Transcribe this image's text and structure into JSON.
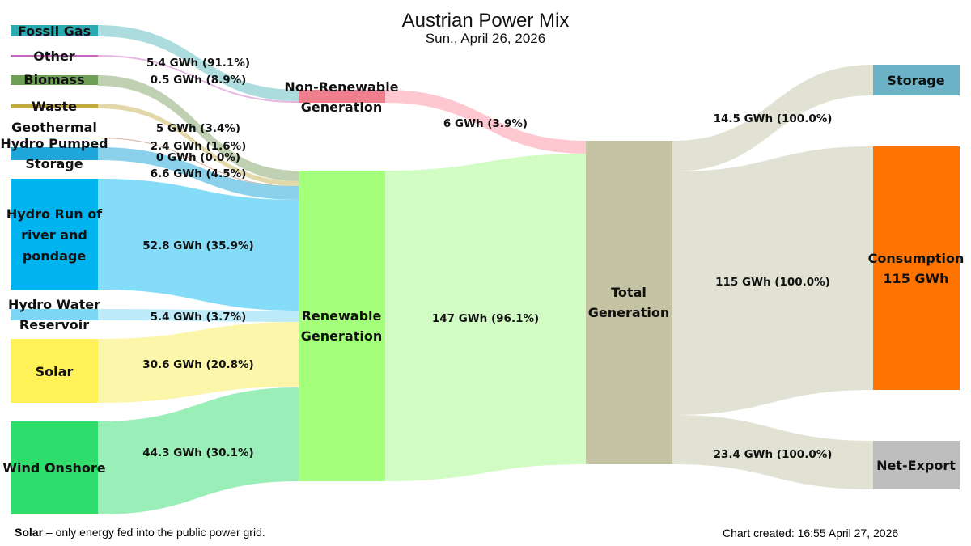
{
  "title": "Austrian Power Mix",
  "subtitle": "Sun., April 26, 2026",
  "footnote": {
    "bold": "Solar",
    "text": "–  only energy fed into the public power grid."
  },
  "created": "Chart created: 16:55 April 27, 2026",
  "nodes": {
    "fossil_gas": {
      "label": "Fossil Gas",
      "color": "#2BAAB2"
    },
    "other": {
      "label": "Other",
      "color": "#C766C0"
    },
    "biomass": {
      "label": "Biomass",
      "color": "#6E9F56"
    },
    "waste": {
      "label": "Waste",
      "color": "#BFAA3E"
    },
    "geothermal": {
      "label": "Geothermal",
      "color": "#A35A2A"
    },
    "hydro_pumped": {
      "label_lines": [
        "Hydro Pumped",
        "Storage"
      ],
      "color": "#1FA6DA"
    },
    "hydro_run": {
      "label_lines": [
        "Hydro Run of",
        "river and",
        "pondage"
      ],
      "color": "#00B4F0"
    },
    "hydro_reservoir": {
      "label_lines": [
        "Hydro Water",
        "Reservoir"
      ],
      "color": "#7CD7F5"
    },
    "solar": {
      "label": "Solar",
      "color": "#FFF157"
    },
    "wind": {
      "label": "Wind Onshore",
      "color": "#2EDD6B"
    },
    "non_renewable": {
      "label_lines": [
        "Non-Renewable",
        "Generation"
      ],
      "color": "#F07F8E"
    },
    "renewable": {
      "label_lines": [
        "Renewable",
        "Generation"
      ],
      "color": "#A4FF7A"
    },
    "total": {
      "label_lines": [
        "Total",
        "Generation"
      ],
      "color": "#C4C3A3"
    },
    "storage": {
      "label": "Storage",
      "color": "#6BB2C7"
    },
    "consumption": {
      "label_lines": [
        "Consumption",
        "115 GWh"
      ],
      "color": "#FF7400"
    },
    "net_export": {
      "label": "Net-Export",
      "color": "#BEBEBE"
    }
  },
  "flows": {
    "fossil_gas": {
      "label": "5.4 GWh (91.1%)",
      "value": 5.4,
      "color": "#A8DADC"
    },
    "other": {
      "label": "0.5 GWh (8.9%)",
      "value": 0.5,
      "color": "#E3B2DE"
    },
    "biomass": {
      "label": "5 GWh (3.4%)",
      "value": 5,
      "color": "#BCCEAF"
    },
    "waste": {
      "label": "2.4 GWh (1.6%)",
      "value": 2.4,
      "color": "#E2D6A4"
    },
    "geothermal": {
      "label": "0 GWh (0.0%)",
      "value": 0,
      "color": "#D5AA90"
    },
    "hydro_pumped": {
      "label": "6.6 GWh (4.5%)",
      "value": 6.6,
      "color": "#86CFEA"
    },
    "hydro_run": {
      "label": "52.8 GWh (35.9%)",
      "value": 52.8,
      "color": "#7DDAF8"
    },
    "hydro_reservoir": {
      "label": "5.4 GWh (3.7%)",
      "value": 5.4,
      "color": "#B9EAF9"
    },
    "solar": {
      "label": "30.6 GWh (20.8%)",
      "value": 30.6,
      "color": "#FBF6A4"
    },
    "wind": {
      "label": "44.3 GWh (30.1%)",
      "value": 44.3,
      "color": "#95EDB3"
    },
    "non_renewable": {
      "label": "6 GWh (3.9%)",
      "value": 6,
      "color": "#FFC4CE"
    },
    "renewable": {
      "label": "147 GWh (96.1%)",
      "value": 147,
      "color": "#CFFDC1"
    },
    "storage": {
      "label": "14.5 GWh (100.0%)",
      "value": 14.5,
      "color": "#E0E0D2"
    },
    "consumption": {
      "label": "115 GWh (100.0%)",
      "value": 115,
      "color": "#E0E0D2"
    },
    "net_export": {
      "label": "23.4 GWh (100.0%)",
      "value": 23.4,
      "color": "#E0E0D2"
    }
  }
}
